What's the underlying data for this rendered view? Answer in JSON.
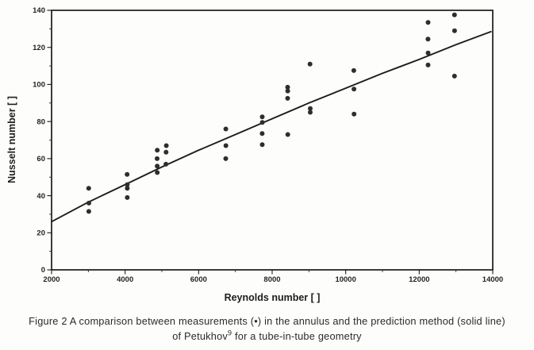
{
  "figure": {
    "caption_line1": "Figure 2 A comparison between measurements (•) in the annulus and the prediction method (solid line)",
    "caption_line2_pre": "of Petukhov",
    "caption_line2_sup": "9",
    "caption_line2_post": " for a tube-in-tube geometry"
  },
  "colors": {
    "background": "#fdfdfc",
    "ink": "#1d1d1d",
    "marker": "#2e2e2e"
  },
  "chart_data": {
    "type": "scatter",
    "title": "",
    "xlabel": "Reynolds number [ ]",
    "ylabel": "Nusselt number [ ]",
    "xlim": [
      2000,
      14000
    ],
    "ylim": [
      0,
      140
    ],
    "x_ticks": [
      2000,
      4000,
      6000,
      8000,
      10000,
      12000,
      14000
    ],
    "y_ticks": [
      0,
      20,
      40,
      60,
      80,
      100,
      120,
      140
    ],
    "x_minor_step": 1000,
    "y_minor_step": 10,
    "grid": false,
    "legend_position": "none",
    "series": [
      {
        "name": "measurements (annulus)",
        "kind": "scatter",
        "marker": "filled-circle",
        "color": "#2e2e2e",
        "points": [
          [
            3010,
            44
          ],
          [
            3015,
            36
          ],
          [
            3012,
            31.5
          ],
          [
            4055,
            51.5
          ],
          [
            4060,
            46
          ],
          [
            4060,
            44
          ],
          [
            4060,
            39
          ],
          [
            4875,
            64.5
          ],
          [
            4870,
            60
          ],
          [
            4873,
            56
          ],
          [
            4875,
            52.5
          ],
          [
            5120,
            67
          ],
          [
            5115,
            63.5
          ],
          [
            5110,
            57
          ],
          [
            6740,
            76
          ],
          [
            6742,
            67
          ],
          [
            6738,
            60
          ],
          [
            7730,
            82.5
          ],
          [
            7732,
            79.5
          ],
          [
            7728,
            73.5
          ],
          [
            7730,
            67.5
          ],
          [
            8420,
            98.5
          ],
          [
            8422,
            96.5
          ],
          [
            8420,
            92.5
          ],
          [
            8425,
            73
          ],
          [
            9030,
            111
          ],
          [
            9035,
            87
          ],
          [
            9035,
            85
          ],
          [
            10220,
            107.5
          ],
          [
            10225,
            97.5
          ],
          [
            10228,
            84
          ],
          [
            12240,
            133.5
          ],
          [
            12238,
            124.5
          ],
          [
            12240,
            117
          ],
          [
            12242,
            110.5
          ],
          [
            12960,
            137.5
          ],
          [
            12962,
            129
          ],
          [
            12960,
            104.5
          ]
        ]
      },
      {
        "name": "Petukhov prediction (solid line)",
        "kind": "line",
        "color": "#1d1d1d",
        "points": [
          [
            2000,
            26
          ],
          [
            3000,
            36.5
          ],
          [
            4000,
            46
          ],
          [
            5000,
            55.5
          ],
          [
            6000,
            64.5
          ],
          [
            7000,
            73
          ],
          [
            8000,
            81.5
          ],
          [
            9000,
            90
          ],
          [
            10000,
            98
          ],
          [
            11000,
            106
          ],
          [
            12000,
            113.5
          ],
          [
            13000,
            121.5
          ],
          [
            13950,
            128.5
          ]
        ]
      }
    ]
  }
}
